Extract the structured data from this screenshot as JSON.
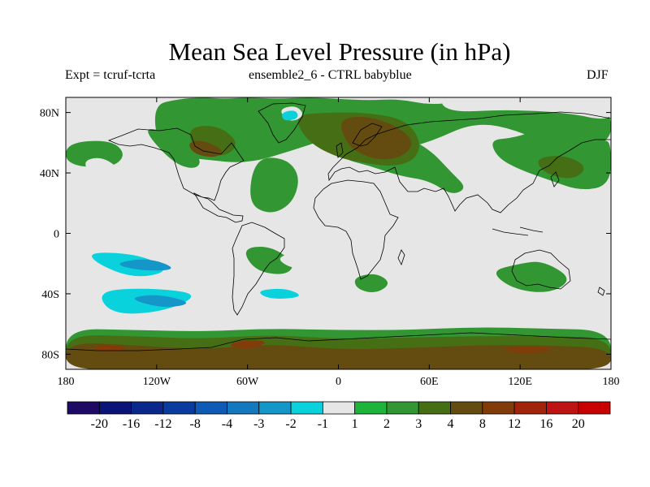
{
  "title": "Mean Sea Level Pressure (in hPa)",
  "left_subtitle": "Expt = tcruf-tcrta",
  "center_subtitle": "ensemble2_6 - CTRL babyblue",
  "right_subtitle": "DJF",
  "map": {
    "projection": "cylindrical equidistant",
    "lon_range": [
      -180,
      180
    ],
    "lat_range": [
      -90,
      90
    ],
    "lat_ticks": [
      {
        "value": 80,
        "label": "80N"
      },
      {
        "value": 40,
        "label": "40N"
      },
      {
        "value": 0,
        "label": "0"
      },
      {
        "value": -40,
        "label": "40S"
      },
      {
        "value": -80,
        "label": "80S"
      }
    ],
    "lon_ticks": [
      {
        "value": -180,
        "label": "180"
      },
      {
        "value": -120,
        "label": "120W"
      },
      {
        "value": -60,
        "label": "60W"
      },
      {
        "value": 0,
        "label": "0"
      },
      {
        "value": 60,
        "label": "60E"
      },
      {
        "value": 120,
        "label": "120E"
      },
      {
        "value": 180,
        "label": "180"
      }
    ],
    "colorbar": {
      "labels": [
        "-20",
        "-16",
        "-12",
        "-8",
        "-4",
        "-3",
        "-2",
        "-1",
        "1",
        "2",
        "3",
        "4",
        "8",
        "12",
        "16",
        "20"
      ],
      "colors": [
        "#1e0a64",
        "#0a1478",
        "#0a288c",
        "#0a3ca0",
        "#0f5ab4",
        "#1478be",
        "#1496c8",
        "#0ad2dc",
        "#e6e6e6",
        "#1eb43c",
        "#329632",
        "#466e14",
        "#644b0f",
        "#823c0a",
        "#a0230a",
        "#be1414",
        "#c80000"
      ]
    }
  },
  "chart_data": {
    "type": "heatmap",
    "variable": "Mean Sea Level Pressure difference (hPa)",
    "season": "DJF",
    "levels": [
      -20,
      -16,
      -12,
      -8,
      -4,
      -3,
      -2,
      -1,
      1,
      2,
      3,
      4,
      8,
      12,
      16,
      20
    ],
    "regions": [
      {
        "level": 2,
        "lon": [
          -180,
          -180,
          -135,
          -90,
          -45,
          0,
          45,
          90,
          135,
          180,
          180,
          135,
          90,
          45,
          0,
          -45,
          -90,
          -135
        ],
        "lat": [
          -90,
          -63,
          -64,
          -65,
          -63,
          -64,
          -64,
          -62,
          -63,
          -64,
          -90,
          -90,
          -90,
          -90,
          -90,
          -90,
          -90,
          -90
        ]
      },
      {
        "level": 3,
        "lon": [
          -180,
          -180,
          -135,
          -90,
          -45,
          0,
          45,
          90,
          135,
          180,
          180,
          135,
          90,
          45,
          0,
          -45,
          -90,
          -135
        ],
        "lat": [
          -90,
          -67,
          -68,
          -70,
          -67,
          -70,
          -69,
          -68,
          -68,
          -69,
          -90,
          -90,
          -90,
          -90,
          -90,
          -90,
          -90,
          -90
        ]
      },
      {
        "level": 4,
        "lon": [
          -180,
          -180,
          -135,
          -90,
          -45,
          0,
          45,
          90,
          135,
          180,
          180,
          135,
          90,
          45,
          0,
          -45,
          -90,
          -135
        ],
        "lat": [
          -90,
          -72,
          -74,
          -77,
          -73,
          -77,
          -76,
          -74,
          -74,
          -76,
          -90,
          -90,
          -90,
          -90,
          -90,
          -90,
          -90,
          -90
        ]
      },
      {
        "level": 8,
        "lon": [
          -165,
          -150,
          -138,
          -150
        ],
        "lat": [
          -76,
          -73,
          -76,
          -79
        ]
      },
      {
        "level": 8,
        "lon": [
          -75,
          -60,
          -45,
          -60
        ],
        "lat": [
          -74,
          -70,
          -72,
          -77
        ]
      },
      {
        "level": 8,
        "lon": [
          105,
          125,
          145,
          125
        ],
        "lat": [
          -77,
          -74,
          -77,
          -80
        ]
      },
      {
        "level": 2,
        "lon": [
          -123,
          -105,
          -90,
          -75,
          -60,
          -40,
          -20,
          0,
          20,
          40,
          60,
          80,
          100,
          120,
          145,
          168,
          180,
          180,
          150,
          120,
          90,
          60,
          30,
          0,
          -30,
          -60,
          -90,
          -118
        ],
        "lat": [
          85,
          89,
          90,
          89,
          90,
          89,
          90,
          89,
          88,
          89,
          85,
          87,
          82,
          83,
          84,
          82,
          80,
          60,
          52,
          68,
          74,
          60,
          53,
          65,
          55,
          46,
          49,
          52
        ]
      },
      {
        "level": 2,
        "lon": [
          -130,
          -115,
          -100,
          -90,
          -95,
          -110
        ],
        "lat": [
          70,
          68,
          60,
          48,
          42,
          47
        ]
      },
      {
        "level": 2,
        "lon": [
          -55,
          -35,
          -25,
          -30,
          -45,
          -60
        ],
        "lat": [
          50,
          50,
          38,
          20,
          12,
          20
        ]
      },
      {
        "level": 2,
        "lon": [
          -180,
          -150,
          -140,
          -150,
          -180
        ],
        "lat": [
          60,
          62,
          52,
          43,
          45
        ]
      },
      {
        "level": 2,
        "lon": [
          0,
          20,
          40,
          60,
          75,
          85,
          75,
          60,
          40,
          20,
          0
        ],
        "lat": [
          72,
          70,
          66,
          56,
          40,
          30,
          25,
          35,
          38,
          45,
          50
        ]
      },
      {
        "level": 2,
        "lon": [
          100,
          115,
          130,
          150,
          175,
          180,
          180,
          160,
          140,
          120,
          105
        ],
        "lat": [
          62,
          63,
          68,
          66,
          62,
          60,
          32,
          28,
          35,
          42,
          50
        ]
      },
      {
        "level": 2,
        "lon": [
          -64,
          -45,
          -28,
          -35,
          -55
        ],
        "lat": [
          -10,
          -8,
          -20,
          -28,
          -25
        ]
      },
      {
        "level": 2,
        "lon": [
          10,
          25,
          35,
          25,
          12
        ],
        "lat": [
          -29,
          -26,
          -33,
          -40,
          -37
        ]
      },
      {
        "level": 2,
        "lon": [
          100,
          120,
          135,
          155,
          140,
          115
        ],
        "lat": [
          -25,
          -20,
          -18,
          -30,
          -40,
          -37
        ]
      },
      {
        "level": 3,
        "lon": [
          -100,
          -80,
          -65,
          -75,
          -95
        ],
        "lat": [
          70,
          72,
          60,
          50,
          55
        ]
      },
      {
        "level": 3,
        "lon": [
          -30,
          -10,
          20,
          45,
          55,
          50,
          35,
          15,
          0,
          -20
        ],
        "lat": [
          78,
          80,
          80,
          75,
          60,
          48,
          44,
          47,
          50,
          60
        ]
      },
      {
        "level": 3,
        "lon": [
          130,
          150,
          165,
          155,
          135
        ],
        "lat": [
          50,
          52,
          44,
          35,
          40
        ]
      },
      {
        "level": 4,
        "lon": [
          -100,
          -90,
          -75,
          -80,
          -95
        ],
        "lat": [
          60,
          62,
          55,
          50,
          52
        ]
      },
      {
        "level": 4,
        "lon": [
          0,
          15,
          35,
          50,
          45,
          30,
          15,
          5
        ],
        "lat": [
          75,
          78,
          73,
          62,
          52,
          48,
          52,
          60
        ]
      },
      {
        "level": -1,
        "lon": [
          -180,
          -175,
          -180
        ],
        "lat": [
          82,
          78,
          74
        ]
      },
      {
        "level": -1,
        "lon": [
          -40,
          -28,
          -22,
          -32
        ],
        "lat": [
          82,
          85,
          78,
          73
        ]
      },
      {
        "level": -1,
        "lon": [
          -170,
          -155,
          -142,
          -160
        ],
        "lat": [
          48,
          51,
          40,
          34
        ]
      },
      {
        "level": -1,
        "lon": [
          65,
          90,
          120,
          160,
          180,
          180,
          150,
          110,
          75
        ],
        "lat": [
          88,
          90,
          89,
          90,
          86,
          74,
          80,
          82,
          80
        ]
      },
      {
        "level": -1,
        "lon": [
          -180,
          -160,
          -120,
          -85,
          -65,
          -75,
          -95,
          -130,
          -170,
          -180
        ],
        "lat": [
          -14,
          -12,
          -15,
          -22,
          -30,
          -34,
          -38,
          -30,
          -28,
          -25
        ]
      },
      {
        "level": -1,
        "lon": [
          -180,
          -140,
          -100,
          -70,
          -60,
          -70,
          -110,
          -150,
          -180
        ],
        "lat": [
          -35,
          -33,
          -35,
          -32,
          -43,
          -57,
          -62,
          -60,
          -58
        ]
      },
      {
        "level": -1,
        "lon": [
          -60,
          -35,
          -15,
          -30,
          -55
        ],
        "lat": [
          -35,
          -30,
          -40,
          -50,
          -55
        ]
      },
      {
        "level": -1,
        "lon": [
          -42,
          -25,
          -10,
          -30
        ],
        "lat": [
          -16,
          -12,
          -22,
          -24
        ]
      },
      {
        "level": -1,
        "lon": [
          155,
          175,
          180,
          180,
          160
        ],
        "lat": [
          -42,
          -38,
          -37,
          -55,
          -48
        ]
      },
      {
        "level": -1,
        "lon": [
          -180,
          -175,
          -180
        ],
        "lat": [
          -58,
          -50,
          -42
        ]
      },
      {
        "level": -2,
        "lon": [
          -165,
          -130,
          -110,
          -135,
          -160
        ],
        "lat": [
          -12,
          -14,
          -25,
          -30,
          -20
        ]
      },
      {
        "level": -2,
        "lon": [
          -160,
          -125,
          -90,
          -115,
          -150
        ],
        "lat": [
          -38,
          -36,
          -40,
          -52,
          -54
        ]
      },
      {
        "level": -3,
        "lon": [
          -150,
          -125,
          -105,
          -130
        ],
        "lat": [
          -20,
          -16,
          -24,
          -25
        ]
      },
      {
        "level": -3,
        "lon": [
          -140,
          -120,
          -95,
          -115
        ],
        "lat": [
          -43,
          -40,
          -46,
          -50
        ]
      },
      {
        "level": -2,
        "lon": [
          -55,
          -35,
          -22,
          -45
        ],
        "lat": [
          -38,
          -36,
          -42,
          -44
        ]
      },
      {
        "level": -2,
        "lon": [
          -38,
          -28,
          -26,
          -36
        ],
        "lat": [
          80,
          82,
          76,
          74
        ]
      }
    ]
  }
}
